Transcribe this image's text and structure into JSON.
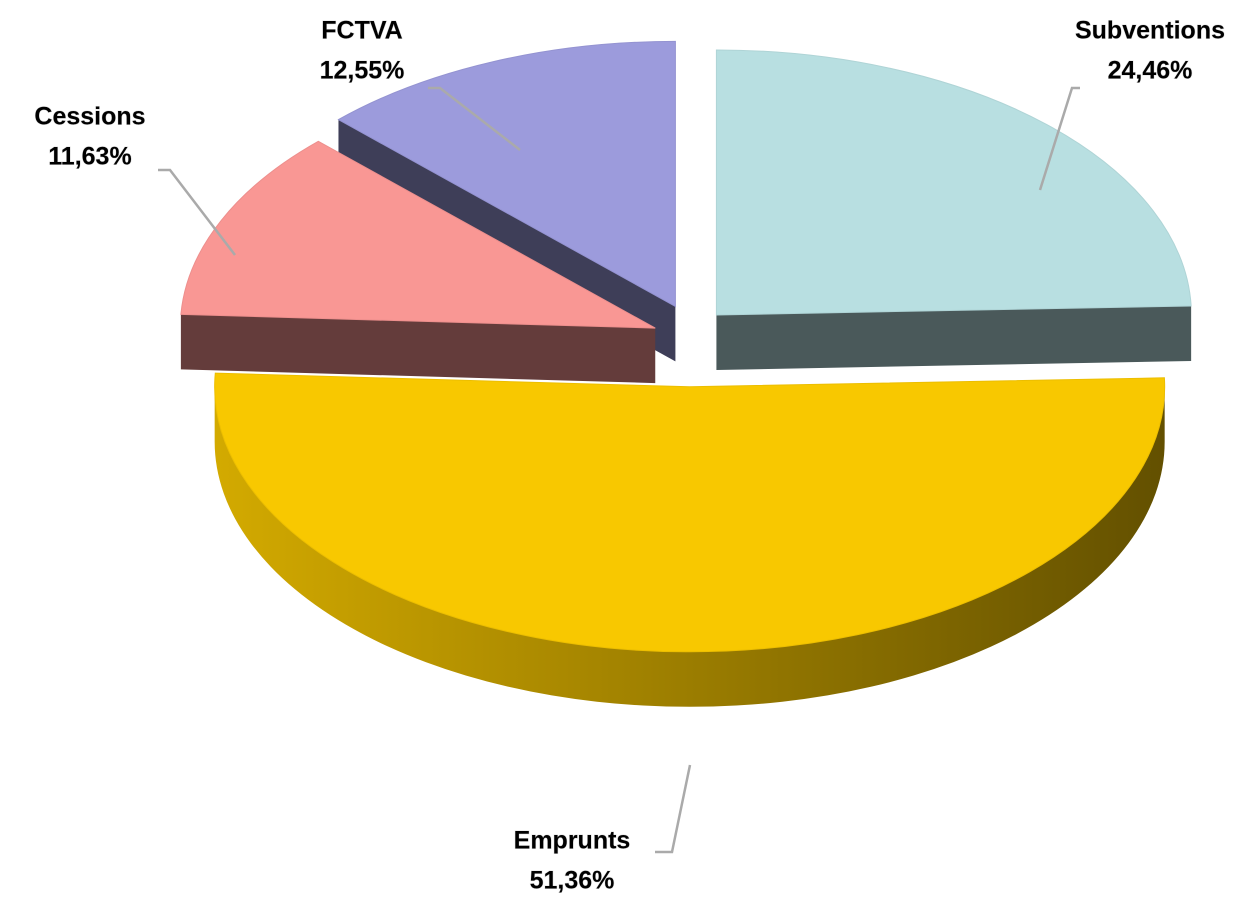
{
  "chart_data": {
    "type": "pie",
    "categories": [
      "Subventions",
      "Emprunts",
      "Cessions",
      "FCTVA"
    ],
    "values": [
      24.46,
      51.36,
      11.63,
      12.55
    ],
    "value_labels": [
      "24,46%",
      "51,36%",
      "11,63%",
      "12,55%"
    ],
    "colors": [
      "#b8dfe1",
      "#f8c800",
      "#f99794",
      "#9c9bdc"
    ]
  }
}
